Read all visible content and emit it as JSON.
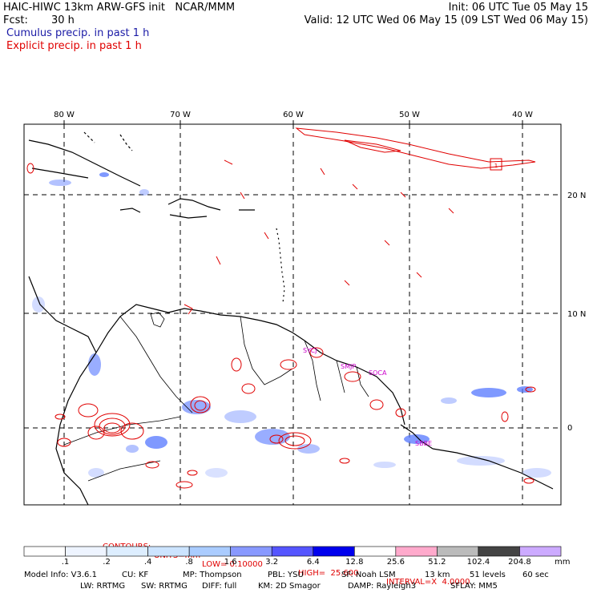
{
  "header": {
    "title": "HAIC-HIWC 13km ARW-GFS init   NCAR/MMM",
    "init": "Init: 06 UTC Tue 05 May 15",
    "fcst_label": "Fcst:",
    "fcst_value": "30 h",
    "valid": "Valid: 12 UTC Wed 06 May 15 (09 LST Wed 06 May 15)",
    "legend_cumulus": "Cumulus precip. in past 1 h",
    "legend_explicit": "Explicit precip. in past 1 h"
  },
  "map": {
    "lon_labels": [
      "80 W",
      "70 W",
      "60 W",
      "50 W",
      "40 W"
    ],
    "lat_labels": [
      "20 N",
      "10 N",
      "0"
    ],
    "station_labels": [
      "SYCJ",
      "SMJP",
      "SOCA",
      "SBBE"
    ],
    "marker_label": "1",
    "colors": {
      "cumulus": "#5577ff",
      "explicit": "#e00000",
      "coast": "#000000"
    }
  },
  "contours_info": {
    "contours": "CONTOURS:",
    "units": "UNITS=mm",
    "low": "LOW= 0.10000",
    "high": "HIGH=  25.600",
    "interval": "INTERVAL=X  4.0000"
  },
  "colorbar": {
    "unit": "mm",
    "labels": [
      ".1",
      ".2",
      ".4",
      ".8",
      "1.6",
      "3.2",
      "6.4",
      "12.8",
      "25.6",
      "51.2",
      "102.4",
      "204.8"
    ],
    "colors": [
      "#ffffff",
      "#eef4ff",
      "#ddeeff",
      "#cce4ff",
      "#aaccff",
      "#8899ff",
      "#5555ff",
      "#0000ee",
      "#ffffff",
      "#ffaacc",
      "#bbbbbb",
      "#444444",
      "#ccaaff"
    ]
  },
  "footer": {
    "line1": [
      "Model Info: V3.6.1",
      "CU: KF",
      "MP: Thompson",
      "PBL: YSU",
      "SF: Noah LSM",
      "13 km",
      "51 levels",
      "60 sec"
    ],
    "line2": [
      "LW: RRTMG",
      "SW: RRTMG",
      "DIFF: full",
      "KM: 2D Smagor",
      "DAMP: Rayleigh3",
      "SFLAY: MM5"
    ]
  }
}
